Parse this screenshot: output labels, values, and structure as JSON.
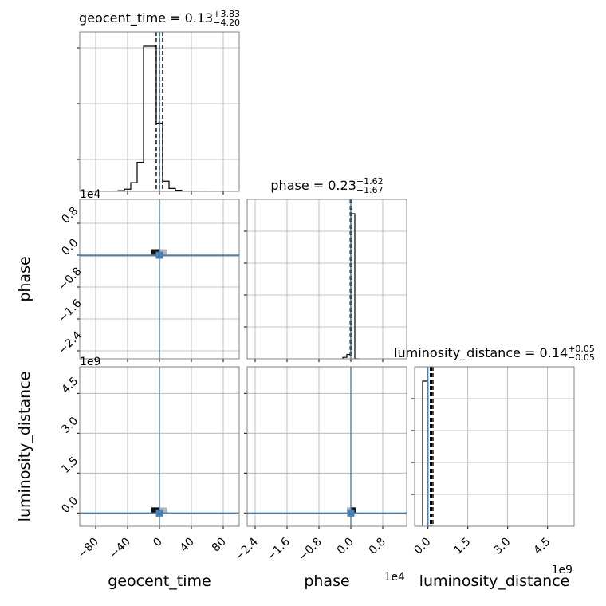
{
  "chart_data": {
    "type": "corner",
    "colors": {
      "hist": "#000000",
      "truth": "#4682b4",
      "grid": "#b0b0b0",
      "frame": "#808080",
      "density_dark": "#111111",
      "density_light": "#b8b8b8"
    },
    "parameters": [
      {
        "name": "geocent_time",
        "label": "geocent_time",
        "median": "0.13",
        "plus": "+3.83",
        "minus": "−4.20",
        "truth": 0
      },
      {
        "name": "phase",
        "label": "phase",
        "median": "0.23",
        "plus": "+1.62",
        "minus": "−1.67",
        "truth": 0
      },
      {
        "name": "luminosity_distance",
        "label": "luminosity_distance",
        "median": "0.14",
        "plus": "+0.05",
        "minus": "−0.05",
        "truth": 0
      }
    ],
    "axes": {
      "geocent_time": {
        "range": [
          -100,
          100
        ],
        "ticks": [
          -80,
          -40,
          0,
          40,
          80
        ],
        "tick_labels": [
          "−80",
          "−40",
          "0",
          "40",
          "80"
        ],
        "offset_label": ""
      },
      "phase": {
        "range": [
          -2.6,
          1.4
        ],
        "ticks": [
          -2.4,
          -1.6,
          -0.8,
          0.0,
          0.8
        ],
        "tick_labels": [
          "−2.4",
          "−1.6",
          "−0.8",
          "0.0",
          "0.8"
        ],
        "offset_label": "1e4"
      },
      "luminosity_distance": {
        "range": [
          -0.5,
          5.5
        ],
        "ticks": [
          0.0,
          1.5,
          3.0,
          4.5
        ],
        "tick_labels": [
          "0.0",
          "1.5",
          "3.0",
          "4.5"
        ],
        "offset_label": "1e9"
      }
    },
    "histograms": {
      "geocent_time": {
        "bin_edges": [
          -60,
          -52,
          -44,
          -36,
          -28,
          -20,
          -12,
          -4,
          4,
          12,
          20,
          28,
          36,
          44,
          52,
          60
        ],
        "counts": [
          0,
          0.005,
          0.015,
          0.06,
          0.2,
          1.0,
          1.0,
          0.47,
          0.07,
          0.02,
          0.008,
          0,
          0,
          0,
          0
        ],
        "quantile_lines": [
          -4.07,
          0.13,
          3.96
        ],
        "y_ticks": [
          0.2,
          0.55,
          0.9
        ]
      },
      "phase": {
        "bin_edges": [
          -0.2,
          -0.1,
          0,
          0.1,
          0.2
        ],
        "counts": [
          0.01,
          0.03,
          1.0,
          0
        ],
        "quantile_lines": [
          -0.0144,
          0.0023,
          0.0185
        ],
        "y_ticks": [
          0.2,
          0.4,
          0.6,
          0.8
        ]
      },
      "luminosity_distance": {
        "bin_edges": [
          -0.2,
          0,
          0.2
        ],
        "counts": [
          1.0,
          0
        ],
        "quantile_lines": [
          0.09,
          0.14,
          0.19
        ],
        "y_ticks": [
          0.2,
          0.4,
          0.6,
          0.8
        ]
      }
    },
    "panels_2d": [
      {
        "x": "geocent_time",
        "y": "phase",
        "dark": {
          "x": [
            -10,
            0
          ],
          "y": [
            0,
            0.15
          ]
        },
        "light": {
          "x": [
            0,
            10
          ],
          "y": [
            0,
            0.15
          ]
        },
        "marker": [
          0,
          0
        ]
      },
      {
        "x": "geocent_time",
        "y": "luminosity_distance",
        "dark": {
          "x": [
            -10,
            0
          ],
          "y": [
            0,
            0.2
          ]
        },
        "light": {
          "x": [
            0,
            10
          ],
          "y": [
            0,
            0.2
          ]
        },
        "marker": [
          0,
          0
        ]
      },
      {
        "x": "phase",
        "y": "luminosity_distance",
        "dark": {
          "x": [
            0,
            0.1
          ],
          "y": [
            0,
            0.2
          ]
        },
        "light": {
          "x": [
            -0.1,
            0
          ],
          "y": [
            0,
            0.2
          ]
        },
        "marker": [
          0,
          0
        ]
      }
    ]
  }
}
